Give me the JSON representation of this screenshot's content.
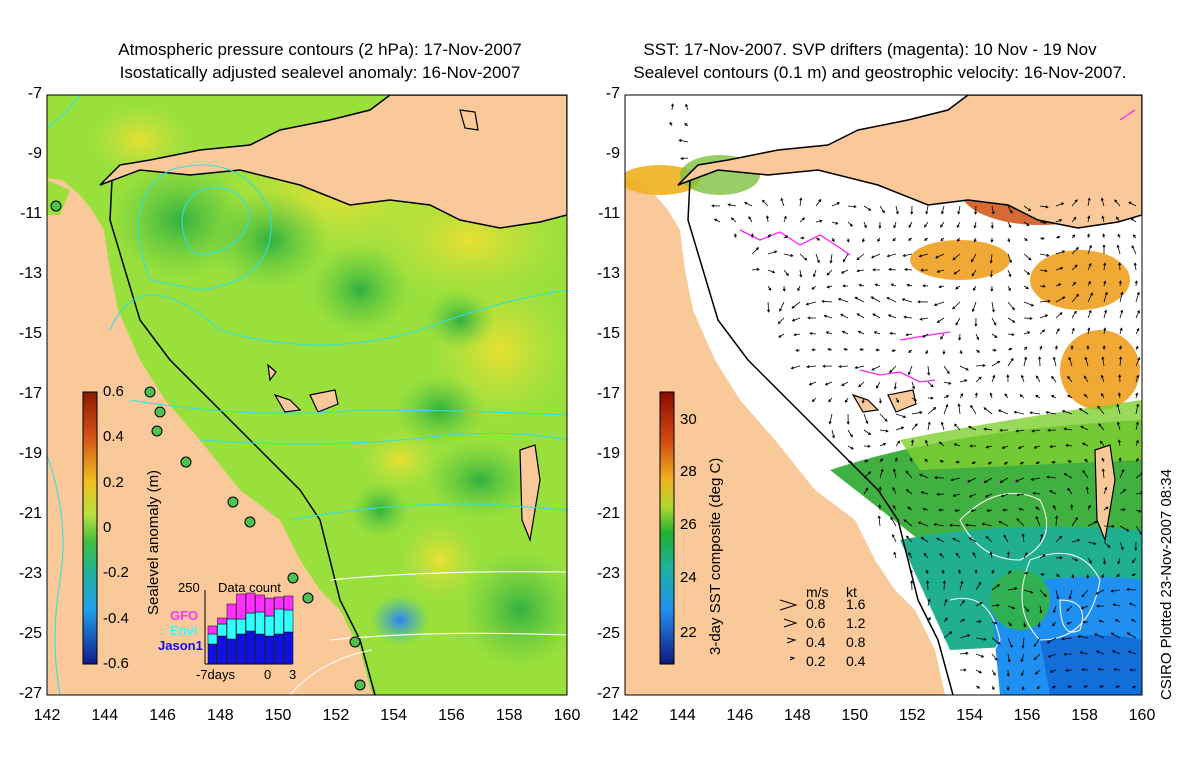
{
  "left_panel": {
    "title_line1": "Atmospheric pressure contours (2 hPa): 17-Nov-2007",
    "title_line2": "Isostatically adjusted sealevel anomaly: 16-Nov-2007",
    "colorbar": {
      "label": "Sealevel anomaly (m)",
      "ticks": [
        "0.6",
        "0.4",
        "0.2",
        "0",
        "-0.2",
        "-0.4",
        "-0.6"
      ],
      "colors": [
        "#8b1a00",
        "#d2501a",
        "#f0a020",
        "#f2e030",
        "#b8e040",
        "#40c040",
        "#20b0a0",
        "#20b0f0",
        "#1060e0",
        "#101a90"
      ]
    },
    "inset": {
      "title": "Data count",
      "ymax": "250",
      "x_start": "-7days",
      "x_mid": "0",
      "x_end": "3",
      "legend": [
        {
          "name": "GFO",
          "color": "#ff30ff"
        },
        {
          "name": "Envi",
          "color": "#30ffff"
        },
        {
          "name": "Jason1",
          "color": "#1010e0"
        }
      ]
    }
  },
  "right_panel": {
    "title_line1": "SST: 17-Nov-2007. SVP drifters (magenta): 10 Nov - 19 Nov",
    "title_line2": "Sealevel contours (0.1 m) and geostrophic velocity: 16-Nov-2007.",
    "colorbar": {
      "label": "3-day SST composite (deg C)",
      "ticks": [
        "30",
        "28",
        "26",
        "24",
        "22"
      ],
      "colors": [
        "#8b0a00",
        "#d24a10",
        "#f0a020",
        "#e8e030",
        "#80d030",
        "#20b030",
        "#20b0a0",
        "#2090f0",
        "#1040d0",
        "#101a80"
      ]
    },
    "velocity_key": {
      "units_ms": "m/s",
      "units_kt": "kt",
      "rows": [
        {
          "ms": "0.8",
          "kt": "1.6"
        },
        {
          "ms": "0.6",
          "kt": "1.2"
        },
        {
          "ms": "0.4",
          "kt": "0.8"
        },
        {
          "ms": "0.2",
          "kt": "0.4"
        }
      ]
    }
  },
  "axes": {
    "lat_labels": [
      "-7",
      "-9",
      "-11",
      "-13",
      "-15",
      "-17",
      "-19",
      "-21",
      "-23",
      "-25",
      "-27"
    ],
    "lon_labels": [
      "142",
      "144",
      "146",
      "148",
      "150",
      "152",
      "154",
      "156",
      "158",
      "160"
    ]
  },
  "stamp": "CSIRO Plotted 23-Nov-2007 08:34",
  "colors": {
    "land": "#f9c99a",
    "ocean_green": "#9ae03c",
    "sst_white": "#ffffff",
    "contour_cyan": "#30e0e0",
    "drifter_magenta": "#ff20ff"
  }
}
